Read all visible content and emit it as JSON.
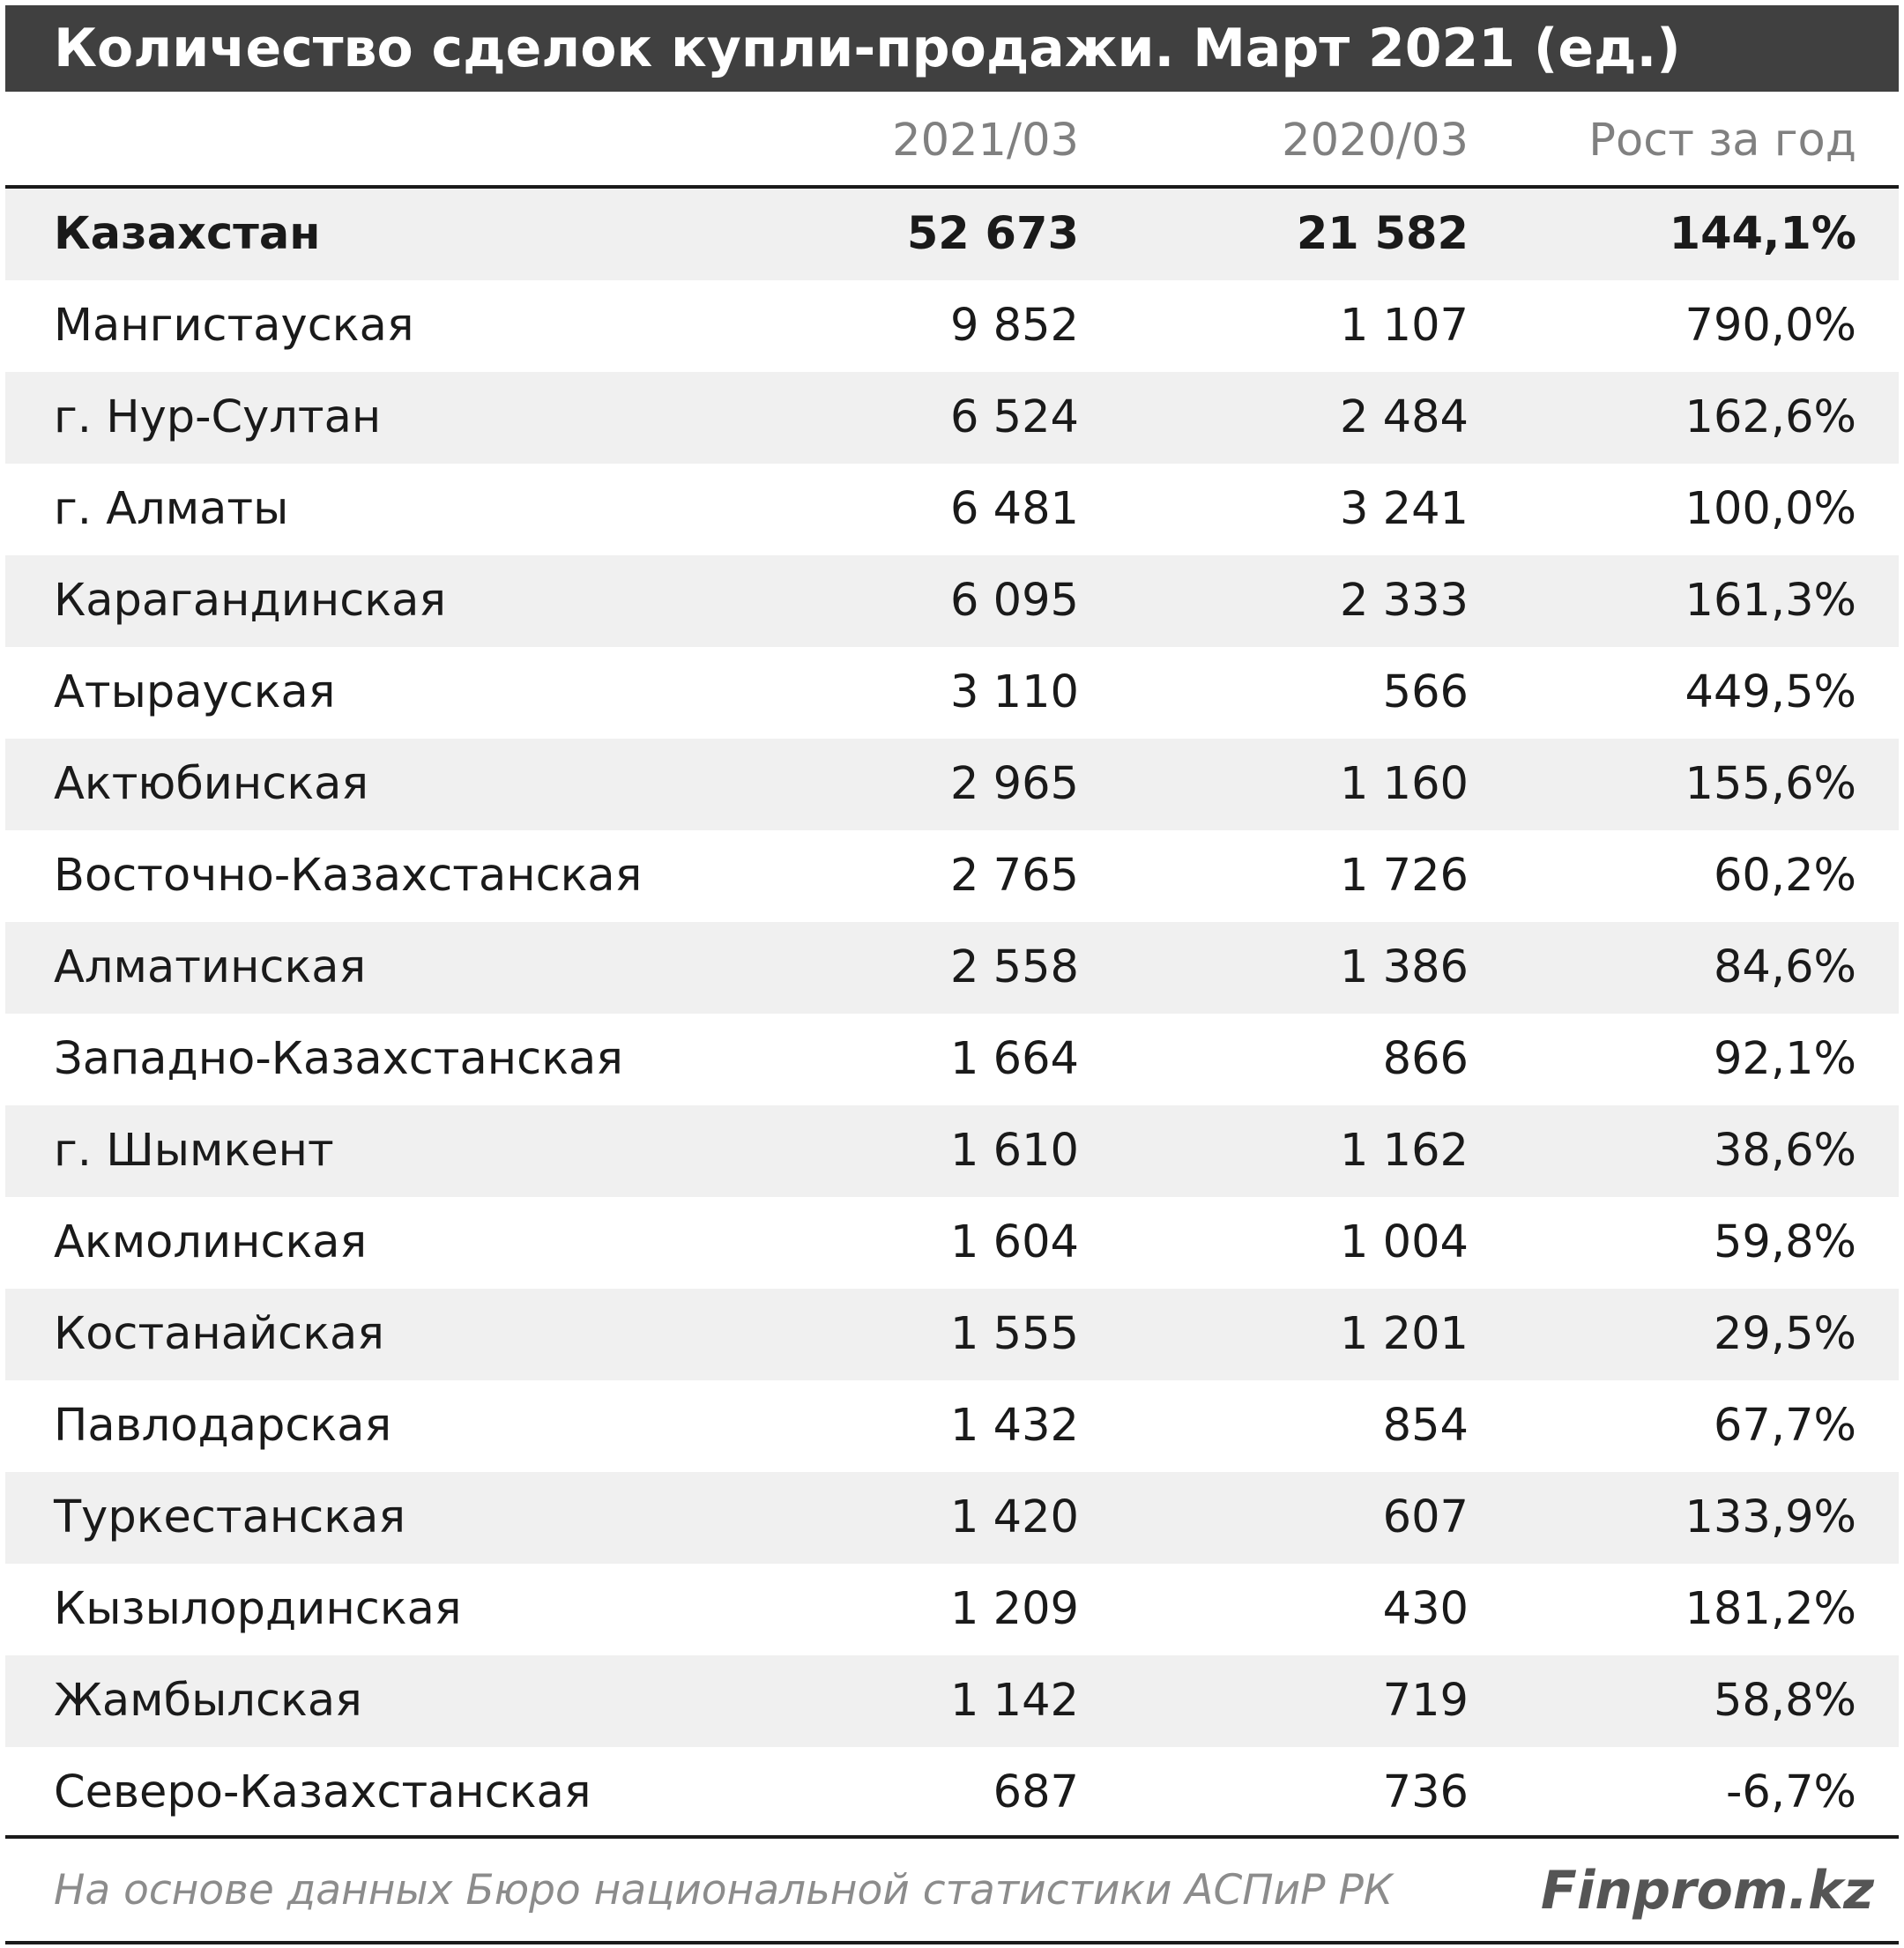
{
  "title": "Количество сделок купли-продажи. Март 2021 (ед.)",
  "headers": {
    "col1": "2021/03",
    "col2": "2020/03",
    "col3": "Рост за год"
  },
  "rows": [
    {
      "region": "Казахстан",
      "v2021": "52 673",
      "v2020": "21 582",
      "growth": "144,1%"
    },
    {
      "region": "Мангистауская",
      "v2021": "9 852",
      "v2020": "1 107",
      "growth": "790,0%"
    },
    {
      "region": "г. Нур-Султан",
      "v2021": "6 524",
      "v2020": "2 484",
      "growth": "162,6%"
    },
    {
      "region": "г. Алматы",
      "v2021": "6 481",
      "v2020": "3 241",
      "growth": "100,0%"
    },
    {
      "region": "Карагандинская",
      "v2021": "6 095",
      "v2020": "2 333",
      "growth": "161,3%"
    },
    {
      "region": "Атырауская",
      "v2021": "3 110",
      "v2020": "566",
      "growth": "449,5%"
    },
    {
      "region": "Актюбинская",
      "v2021": "2 965",
      "v2020": "1 160",
      "growth": "155,6%"
    },
    {
      "region": "Восточно-Казахстанская",
      "v2021": "2 765",
      "v2020": "1 726",
      "growth": "60,2%"
    },
    {
      "region": "Алматинская",
      "v2021": "2 558",
      "v2020": "1 386",
      "growth": "84,6%"
    },
    {
      "region": "Западно-Казахстанская",
      "v2021": "1 664",
      "v2020": "866",
      "growth": "92,1%"
    },
    {
      "region": "г. Шымкент",
      "v2021": "1 610",
      "v2020": "1 162",
      "growth": "38,6%"
    },
    {
      "region": "Акмолинская",
      "v2021": "1 604",
      "v2020": "1 004",
      "growth": "59,8%"
    },
    {
      "region": "Костанайская",
      "v2021": "1 555",
      "v2020": "1 201",
      "growth": "29,5%"
    },
    {
      "region": "Павлодарская",
      "v2021": "1 432",
      "v2020": "854",
      "growth": "67,7%"
    },
    {
      "region": "Туркестанская",
      "v2021": "1 420",
      "v2020": "607",
      "growth": "133,9%"
    },
    {
      "region": "Кызылординская",
      "v2021": "1 209",
      "v2020": "430",
      "growth": "181,2%"
    },
    {
      "region": "Жамбылская",
      "v2021": "1 142",
      "v2020": "719",
      "growth": "58,8%"
    },
    {
      "region": "Северо-Казахстанская",
      "v2021": "687",
      "v2020": "736",
      "growth": "-6,7%"
    }
  ],
  "footer": {
    "source": "На основе данных Бюро национальной статистики АСПиР РК",
    "brand": "Finprom.kz"
  },
  "colors": {
    "title_bg": "#404040",
    "stripe": "#f0f0f0",
    "header_text": "#808080"
  }
}
